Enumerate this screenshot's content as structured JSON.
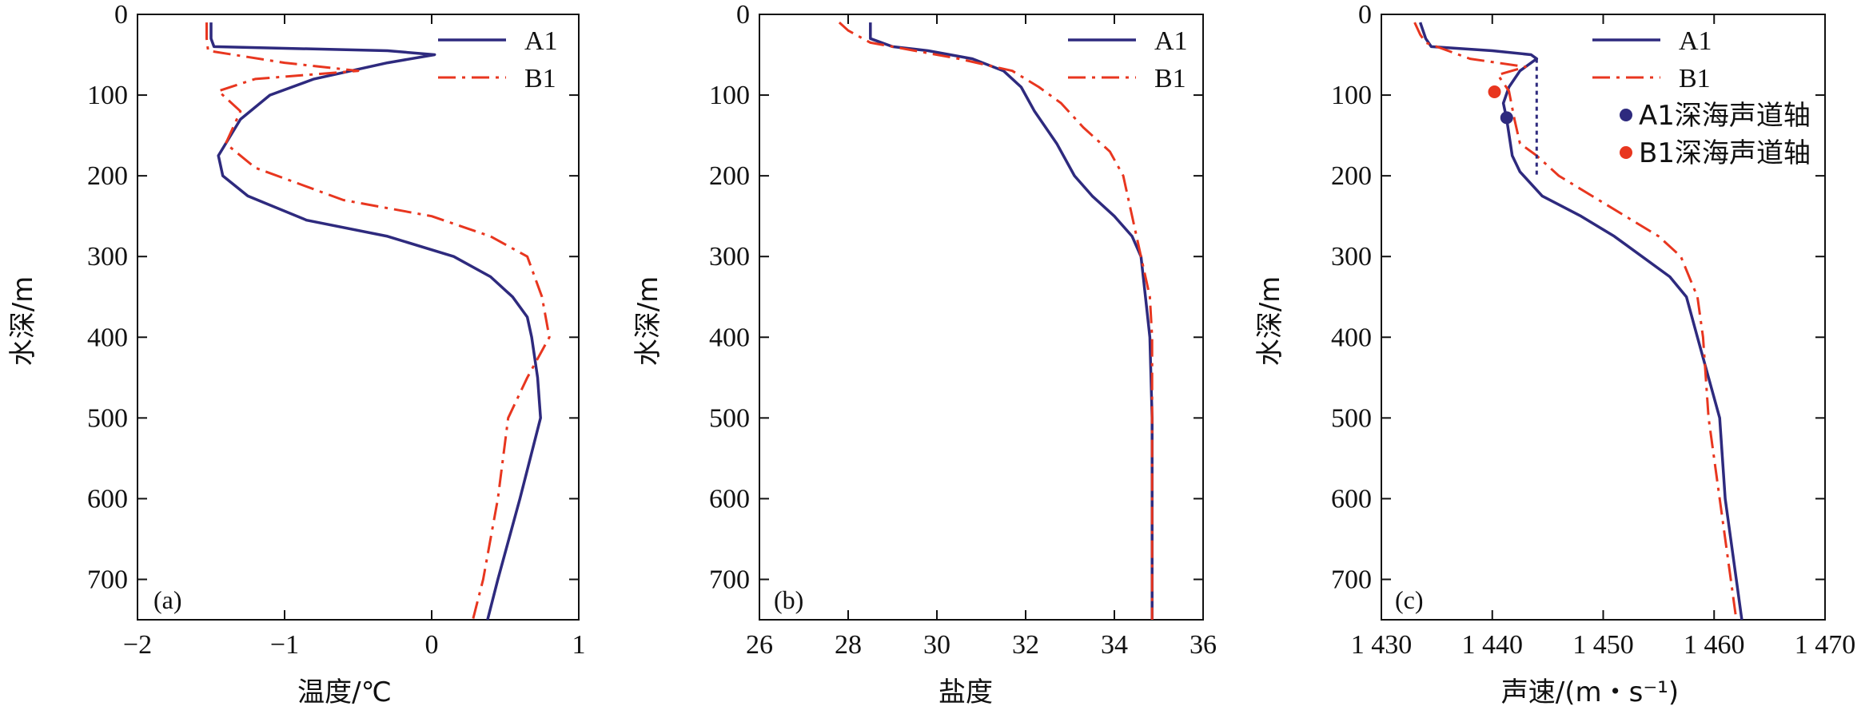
{
  "colors": {
    "A1": "#2e2a7e",
    "B1": "#e8361f",
    "axis": "#111111"
  },
  "chart_data": [
    {
      "type": "line",
      "panel_label": "(a)",
      "xlabel": "温度/℃",
      "ylabel": "水深/m",
      "xlim": [
        -2,
        1
      ],
      "ylim": [
        750,
        0
      ],
      "y_inverted": true,
      "xticks": [
        -2,
        -1,
        0,
        1
      ],
      "xtick_labels": [
        "−2",
        "−1",
        "0",
        "1"
      ],
      "yticks": [
        0,
        100,
        200,
        300,
        400,
        500,
        600,
        700
      ],
      "ytick_labels": [
        "0",
        "100",
        "200",
        "300",
        "400",
        "500",
        "600",
        "700"
      ],
      "legend": [
        "A1",
        "B1"
      ],
      "legend_position": "top-right",
      "series": [
        {
          "name": "A1",
          "style": "solid",
          "points": [
            [
              -1.5,
              10
            ],
            [
              -1.5,
              30
            ],
            [
              -1.48,
              40
            ],
            [
              -0.3,
              45
            ],
            [
              0.02,
              50
            ],
            [
              -0.3,
              60
            ],
            [
              -0.8,
              80
            ],
            [
              -1.1,
              100
            ],
            [
              -1.3,
              130
            ],
            [
              -1.45,
              175
            ],
            [
              -1.42,
              200
            ],
            [
              -1.25,
              225
            ],
            [
              -0.85,
              255
            ],
            [
              -0.3,
              275
            ],
            [
              0.15,
              300
            ],
            [
              0.4,
              325
            ],
            [
              0.55,
              350
            ],
            [
              0.65,
              375
            ],
            [
              0.68,
              400
            ],
            [
              0.72,
              450
            ],
            [
              0.74,
              500
            ],
            [
              0.6,
              600
            ],
            [
              0.45,
              700
            ],
            [
              0.38,
              750
            ]
          ]
        },
        {
          "name": "B1",
          "style": "dashdot",
          "points": [
            [
              -1.53,
              10
            ],
            [
              -1.53,
              30
            ],
            [
              -1.52,
              45
            ],
            [
              -1.0,
              60
            ],
            [
              -0.5,
              70
            ],
            [
              -1.2,
              80
            ],
            [
              -1.45,
              95
            ],
            [
              -1.3,
              120
            ],
            [
              -1.4,
              160
            ],
            [
              -1.2,
              190
            ],
            [
              -0.6,
              230
            ],
            [
              0.0,
              250
            ],
            [
              0.4,
              275
            ],
            [
              0.65,
              300
            ],
            [
              0.75,
              350
            ],
            [
              0.8,
              400
            ],
            [
              0.65,
              450
            ],
            [
              0.52,
              500
            ],
            [
              0.45,
              600
            ],
            [
              0.35,
              700
            ],
            [
              0.28,
              750
            ]
          ]
        }
      ]
    },
    {
      "type": "line",
      "panel_label": "(b)",
      "xlabel": "盐度",
      "ylabel": "水深/m",
      "xlim": [
        26,
        36
      ],
      "ylim": [
        750,
        0
      ],
      "y_inverted": true,
      "xticks": [
        26,
        28,
        30,
        32,
        34,
        36
      ],
      "xtick_labels": [
        "26",
        "28",
        "30",
        "32",
        "34",
        "36"
      ],
      "yticks": [
        0,
        100,
        200,
        300,
        400,
        500,
        600,
        700
      ],
      "ytick_labels": [
        "0",
        "100",
        "200",
        "300",
        "400",
        "500",
        "600",
        "700"
      ],
      "legend": [
        "A1",
        "B1"
      ],
      "legend_position": "top-right",
      "series": [
        {
          "name": "A1",
          "style": "solid",
          "points": [
            [
              28.5,
              10
            ],
            [
              28.5,
              30
            ],
            [
              29.0,
              40
            ],
            [
              29.8,
              45
            ],
            [
              30.8,
              55
            ],
            [
              31.5,
              70
            ],
            [
              31.9,
              90
            ],
            [
              32.2,
              120
            ],
            [
              32.7,
              160
            ],
            [
              33.1,
              200
            ],
            [
              33.5,
              225
            ],
            [
              34.0,
              250
            ],
            [
              34.4,
              275
            ],
            [
              34.6,
              300
            ],
            [
              34.7,
              350
            ],
            [
              34.8,
              400
            ],
            [
              34.85,
              500
            ],
            [
              34.85,
              600
            ],
            [
              34.85,
              700
            ],
            [
              34.85,
              750
            ]
          ]
        },
        {
          "name": "B1",
          "style": "dashdot",
          "points": [
            [
              27.8,
              10
            ],
            [
              28.0,
              20
            ],
            [
              28.5,
              35
            ],
            [
              29.5,
              45
            ],
            [
              30.5,
              55
            ],
            [
              31.7,
              70
            ],
            [
              32.3,
              90
            ],
            [
              32.8,
              110
            ],
            [
              33.3,
              140
            ],
            [
              33.9,
              170
            ],
            [
              34.2,
              200
            ],
            [
              34.4,
              250
            ],
            [
              34.6,
              300
            ],
            [
              34.8,
              350
            ],
            [
              34.85,
              400
            ],
            [
              34.85,
              500
            ],
            [
              34.85,
              600
            ],
            [
              34.85,
              700
            ],
            [
              34.85,
              750
            ]
          ]
        }
      ]
    },
    {
      "type": "line",
      "panel_label": "(c)",
      "xlabel": "声速/(m・s⁻¹)",
      "ylabel": "水深/m",
      "xlim": [
        1430,
        1470
      ],
      "ylim": [
        750,
        0
      ],
      "y_inverted": true,
      "xticks": [
        1430,
        1440,
        1450,
        1460,
        1470
      ],
      "xtick_labels": [
        "1 430",
        "1 440",
        "1 450",
        "1 460",
        "1 470"
      ],
      "yticks": [
        0,
        100,
        200,
        300,
        400,
        500,
        600,
        700
      ],
      "ytick_labels": [
        "0",
        "100",
        "200",
        "300",
        "400",
        "500",
        "600",
        "700"
      ],
      "legend": [
        "A1",
        "B1",
        "A1深海声道轴",
        "B1深海声道轴"
      ],
      "legend_position": "top-right",
      "series": [
        {
          "name": "A1",
          "style": "solid",
          "points": [
            [
              1433.5,
              10
            ],
            [
              1434,
              30
            ],
            [
              1434.5,
              40
            ],
            [
              1440,
              45
            ],
            [
              1443.5,
              50
            ],
            [
              1444,
              55
            ],
            [
              1442.5,
              70
            ],
            [
              1441.5,
              90
            ],
            [
              1441,
              110
            ],
            [
              1441.3,
              130
            ],
            [
              1441.8,
              175
            ],
            [
              1442.5,
              195
            ],
            [
              1444.5,
              225
            ],
            [
              1448,
              250
            ],
            [
              1451,
              275
            ],
            [
              1453.5,
              300
            ],
            [
              1456,
              325
            ],
            [
              1457.5,
              350
            ],
            [
              1458.5,
              400
            ],
            [
              1459.5,
              450
            ],
            [
              1460.5,
              500
            ],
            [
              1461,
              600
            ],
            [
              1462,
              700
            ],
            [
              1462.5,
              750
            ]
          ]
        },
        {
          "name": "B1",
          "style": "dashdot",
          "points": [
            [
              1433,
              10
            ],
            [
              1433.5,
              25
            ],
            [
              1434,
              35
            ],
            [
              1438,
              55
            ],
            [
              1443,
              65
            ],
            [
              1440.5,
              75
            ],
            [
              1441.5,
              95
            ],
            [
              1442,
              130
            ],
            [
              1442.5,
              160
            ],
            [
              1444,
              175
            ],
            [
              1446,
              200
            ],
            [
              1449,
              225
            ],
            [
              1452,
              250
            ],
            [
              1455,
              275
            ],
            [
              1457,
              300
            ],
            [
              1458.5,
              350
            ],
            [
              1459,
              400
            ],
            [
              1459.5,
              500
            ],
            [
              1460.5,
              600
            ],
            [
              1461.5,
              700
            ],
            [
              1462,
              750
            ]
          ]
        },
        {
          "name": "A1深海声道轴",
          "style": "dotted-bracket",
          "points": [
            [
              1444,
              55
            ],
            [
              1444,
              200
            ]
          ]
        }
      ],
      "markers": [
        {
          "name": "A1深海声道轴",
          "x": 1441.3,
          "y": 128,
          "color_key": "A1"
        },
        {
          "name": "B1深海声道轴",
          "x": 1440.2,
          "y": 96,
          "color_key": "B1"
        }
      ]
    }
  ]
}
